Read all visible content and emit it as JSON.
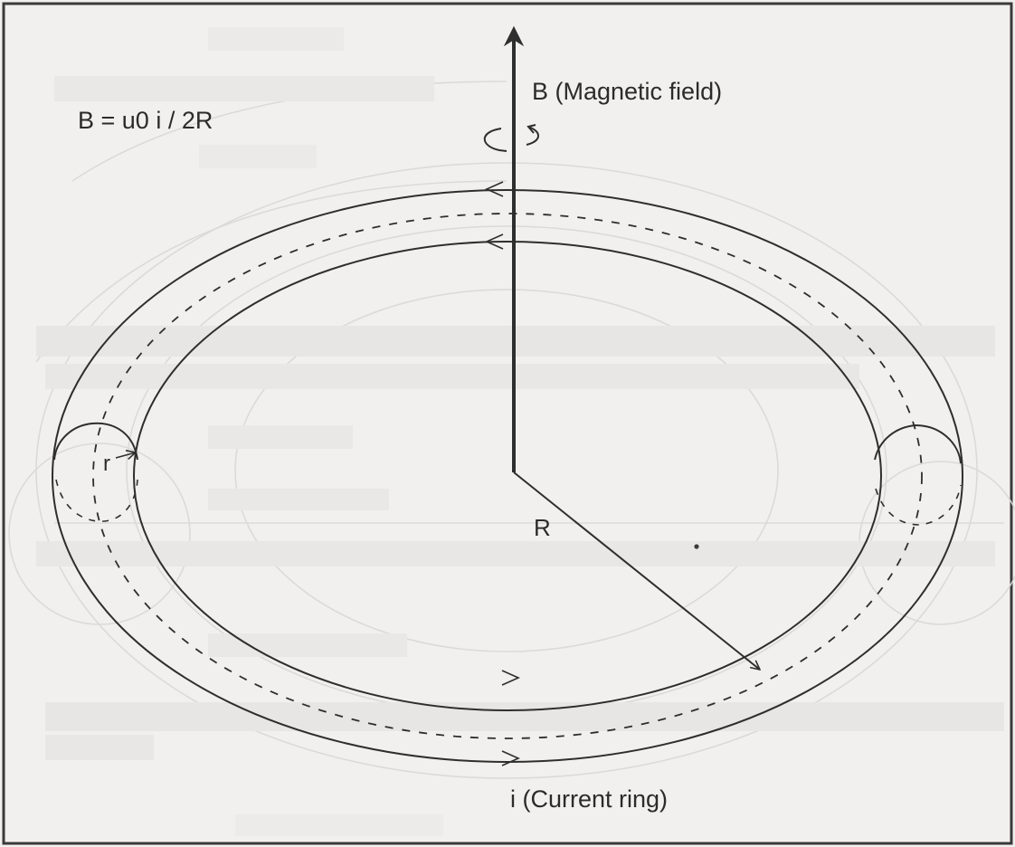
{
  "formula": "B = u0 i / 2R",
  "labels": {
    "magnetic_field": "B (Magnetic field)",
    "current_ring": "i (Current ring)",
    "ring_radius": "R",
    "tube_radius": "r"
  },
  "colors": {
    "ink": "#2e2e2e",
    "paper": "#f1f0ee",
    "bleed_through": "#d9d8d6"
  }
}
